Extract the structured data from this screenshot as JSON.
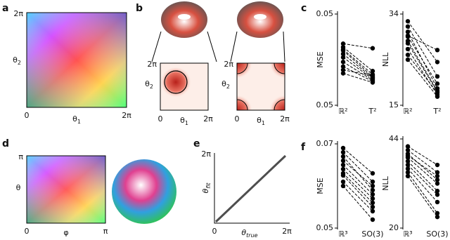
{
  "panels": {
    "a": {
      "letter": "a",
      "ytick": "2π",
      "xtick0": "0",
      "xtick1": "2π",
      "xlabel": {
        "base": "θ",
        "sub": "1"
      },
      "ylabel": {
        "base": "θ",
        "sub": "2"
      }
    },
    "b": {
      "letter": "b",
      "left": {
        "ytick1": "2π",
        "ytick0": "0",
        "xtick1": "2π",
        "xlabel": {
          "base": "θ",
          "sub": "1"
        },
        "ylabel": {
          "base": "θ",
          "sub": "2"
        }
      },
      "right": {
        "ytick1": "2π",
        "ytick0": "0",
        "xtick1": "2π",
        "xlabel": {
          "base": "θ",
          "sub": "1"
        },
        "ylabel": {
          "base": "θ",
          "sub": "2"
        }
      }
    },
    "c": {
      "letter": "c"
    },
    "d": {
      "letter": "d",
      "ytick": "π",
      "xtick0": "0",
      "xtick1": "π",
      "xlabel": "φ",
      "ylabel": "θ"
    },
    "e": {
      "letter": "e",
      "ytick": "2π",
      "xtick0": "0",
      "xtick1": "2π",
      "xlabel": {
        "base": "θ",
        "sub": "true"
      },
      "ylabel": {
        "base": "θ",
        "sub": "fit"
      }
    },
    "f": {
      "letter": "f"
    }
  },
  "chart_data": [
    {
      "type": "slope",
      "ylabel": "MSE",
      "categories": [
        "ℝ²",
        "T²"
      ],
      "ylim": [
        0.046,
        0.054
      ],
      "yticks": [
        {
          "value": 0.054,
          "label": "0.05"
        },
        {
          "value": 0.046,
          "label": "0.05"
        }
      ],
      "color": "#000000",
      "series": [
        {
          "values": [
            0.0514,
            0.051
          ]
        },
        {
          "values": [
            0.0511,
            0.049
          ]
        },
        {
          "values": [
            0.0509,
            0.0487
          ]
        },
        {
          "values": [
            0.0508,
            0.0485
          ]
        },
        {
          "values": [
            0.0505,
            0.0484
          ]
        },
        {
          "values": [
            0.0502,
            0.0483
          ]
        },
        {
          "values": [
            0.0498,
            0.0482
          ]
        },
        {
          "values": [
            0.0494,
            0.0481
          ]
        },
        {
          "values": [
            0.0491,
            0.0486
          ]
        },
        {
          "values": [
            0.0488,
            0.048
          ]
        }
      ]
    },
    {
      "type": "slope",
      "ylabel": "NLL",
      "categories": [
        "ℝ²",
        "T²"
      ],
      "ylim": [
        15,
        34
      ],
      "yticks": [
        34,
        15
      ],
      "color": "#000000",
      "series": [
        {
          "values": [
            32.5,
            24
          ]
        },
        {
          "values": [
            31.4,
            21
          ]
        },
        {
          "values": [
            30.3,
            18.5
          ]
        },
        {
          "values": [
            29.3,
            19.5
          ]
        },
        {
          "values": [
            28.4,
            18
          ]
        },
        {
          "values": [
            27.9,
            17.8
          ]
        },
        {
          "values": [
            26.7,
            17.2
          ]
        },
        {
          "values": [
            25.5,
            17.6
          ]
        },
        {
          "values": [
            24.5,
            16.8
          ]
        },
        {
          "values": [
            29.5,
            26.5
          ]
        }
      ]
    },
    {
      "type": "slope",
      "ylabel": "MSE",
      "categories": [
        "ℝ³",
        "SO(3)"
      ],
      "ylim": [
        0.05,
        0.07
      ],
      "yticks": [
        {
          "value": 0.07,
          "label": "0.07"
        },
        {
          "value": 0.05,
          "label": "0.05"
        }
      ],
      "color": "#000000",
      "series": [
        {
          "values": [
            0.069,
            0.063
          ]
        },
        {
          "values": [
            0.068,
            0.061
          ]
        },
        {
          "values": [
            0.067,
            0.059
          ]
        },
        {
          "values": [
            0.066,
            0.06
          ]
        },
        {
          "values": [
            0.065,
            0.058
          ]
        },
        {
          "values": [
            0.064,
            0.057
          ]
        },
        {
          "values": [
            0.063,
            0.056
          ]
        },
        {
          "values": [
            0.0625,
            0.055
          ]
        },
        {
          "values": [
            0.061,
            0.054
          ]
        },
        {
          "values": [
            0.06,
            0.052
          ]
        }
      ]
    },
    {
      "type": "slope",
      "ylabel": "NLL",
      "categories": [
        "ℝ³",
        "SO(3)"
      ],
      "ylim": [
        20,
        44
      ],
      "yticks": [
        44,
        20
      ],
      "color": "#000000",
      "series": [
        {
          "values": [
            42,
            37
          ]
        },
        {
          "values": [
            41,
            35
          ]
        },
        {
          "values": [
            40,
            33
          ]
        },
        {
          "values": [
            39.5,
            34
          ]
        },
        {
          "values": [
            39,
            32
          ]
        },
        {
          "values": [
            38,
            30
          ]
        },
        {
          "values": [
            37,
            29
          ]
        },
        {
          "values": [
            36,
            27
          ]
        },
        {
          "values": [
            35,
            24
          ]
        },
        {
          "values": [
            34,
            23
          ]
        }
      ]
    }
  ]
}
